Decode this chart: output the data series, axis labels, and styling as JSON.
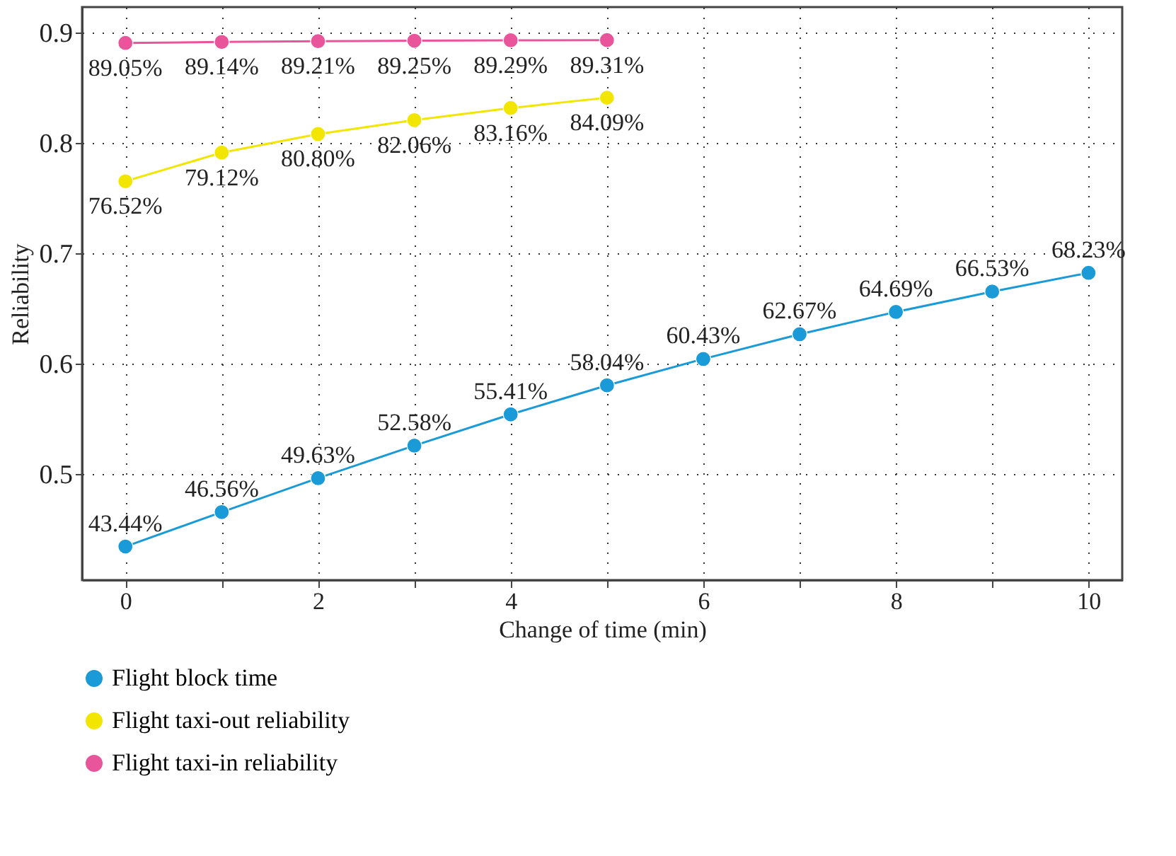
{
  "chart_data": {
    "type": "line",
    "xlabel": "Change of time (min)",
    "ylabel": "Reliability",
    "x": [
      0,
      1,
      2,
      3,
      4,
      5,
      6,
      7,
      8,
      9,
      10
    ],
    "series": [
      {
        "name": "Flight block time",
        "color": "#1a9ad6",
        "values": [
          0.4344,
          0.4656,
          0.4963,
          0.5258,
          0.5541,
          0.5804,
          0.6043,
          0.6267,
          0.6469,
          0.6653,
          0.6823
        ],
        "value_labels": [
          "43.44%",
          "46.56%",
          "49.63%",
          "52.58%",
          "55.41%",
          "58.04%",
          "60.43%",
          "62.67%",
          "64.69%",
          "66.53%",
          "68.23%"
        ]
      },
      {
        "name": "Flight taxi-out reliability",
        "color": "#f2e600",
        "values": [
          0.7652,
          0.7912,
          0.808,
          0.8206,
          0.8316,
          0.8409,
          null,
          null,
          null,
          null,
          null
        ],
        "value_labels": [
          "76.52%",
          "79.12%",
          "80.80%",
          "82.06%",
          "83.16%",
          "84.09%",
          null,
          null,
          null,
          null,
          null
        ]
      },
      {
        "name": "Flight taxi-in reliability",
        "color": "#e8559b",
        "values": [
          0.8905,
          0.8914,
          0.8921,
          0.8925,
          0.8929,
          0.8931,
          null,
          null,
          null,
          null,
          null
        ],
        "value_labels": [
          "89.05%",
          "89.14%",
          "89.21%",
          "89.25%",
          "89.29%",
          "89.31%",
          null,
          null,
          null,
          null,
          null
        ]
      }
    ],
    "xlim": [
      -0.45,
      10.35
    ],
    "ylim": [
      0.404,
      0.923
    ],
    "xticks": [
      0,
      {
        "value": 1,
        "label": null
      },
      2,
      {
        "value": 3,
        "label": null
      },
      4,
      {
        "value": 5,
        "label": null
      },
      6,
      {
        "value": 7,
        "label": null
      },
      8,
      {
        "value": 9,
        "label": null
      },
      10
    ],
    "yticks": [
      0.5,
      0.6,
      0.7,
      0.8,
      0.9
    ],
    "grid": true,
    "legend": "bottom",
    "marker": "circle",
    "line_style": "solid"
  }
}
